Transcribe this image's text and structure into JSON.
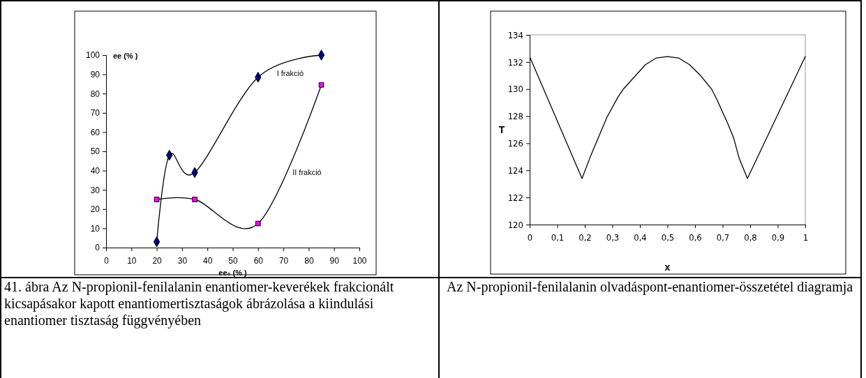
{
  "chart_data": [
    {
      "type": "line",
      "xlabel": "ee₀ (% )",
      "ylabel": "ee (% )",
      "xlim": [
        0,
        100
      ],
      "ylim": [
        0,
        100
      ],
      "xticks": [
        0,
        10,
        20,
        30,
        40,
        50,
        60,
        70,
        80,
        90,
        100
      ],
      "yticks": [
        0,
        10,
        20,
        30,
        40,
        50,
        60,
        70,
        80,
        90,
        100
      ],
      "series": [
        {
          "name": "I frakció",
          "color": "#000080",
          "marker": "diamond",
          "x": [
            20,
            25,
            35,
            60,
            85
          ],
          "values": [
            3,
            48,
            39,
            88.5,
            100
          ]
        },
        {
          "name": "II frakció",
          "color": "#ff00ff",
          "marker": "square",
          "x": [
            20,
            35,
            60,
            85
          ],
          "values": [
            25,
            25,
            12.5,
            84.5
          ]
        }
      ],
      "annotations": [
        "41. ábra Az N-propionil-fenilalanin enantiomer-keverékek frakcionált kicsapásakor kapott enantiomertisztaságok ábrázolása a kiindulási enantiomer tisztaság függvényében"
      ]
    },
    {
      "type": "line",
      "xlabel": "x",
      "ylabel": "T",
      "xlim": [
        0,
        1
      ],
      "ylim": [
        120,
        134
      ],
      "xticks": [
        0,
        {
          "value": 0.1,
          "label": "0,1"
        },
        {
          "value": 0.2,
          "label": "0,2"
        },
        {
          "value": 0.3,
          "label": "0,3"
        },
        {
          "value": 0.4,
          "label": "0,4"
        },
        {
          "value": 0.5,
          "label": "0,5"
        },
        {
          "value": 0.6,
          "label": "0,6"
        },
        {
          "value": 0.7,
          "label": "0,7"
        },
        {
          "value": 0.8,
          "label": "0,8"
        },
        {
          "value": 0.9,
          "label": "0,9"
        },
        1
      ],
      "yticks": [
        120,
        122,
        124,
        126,
        128,
        130,
        132,
        134
      ],
      "series": [
        {
          "color": "#000000",
          "x": [
            0,
            0.19,
            0.22,
            0.28,
            0.32,
            0.34,
            0.38,
            0.42,
            0.46,
            0.5,
            0.54,
            0.58,
            0.62,
            0.66,
            0.68,
            0.72,
            0.74,
            0.76,
            0.79,
            1
          ],
          "values": [
            132.4,
            123.4,
            125,
            127.9,
            129.4,
            130,
            130.9,
            131.8,
            132.3,
            132.4,
            132.3,
            131.8,
            131,
            130,
            129.2,
            127.4,
            126.4,
            124.9,
            123.4,
            132.4
          ]
        }
      ],
      "annotations": [
        "Az N-propionil-fenilalanin olvadáspont-enantiomer-összetétel diagramja"
      ]
    }
  ]
}
